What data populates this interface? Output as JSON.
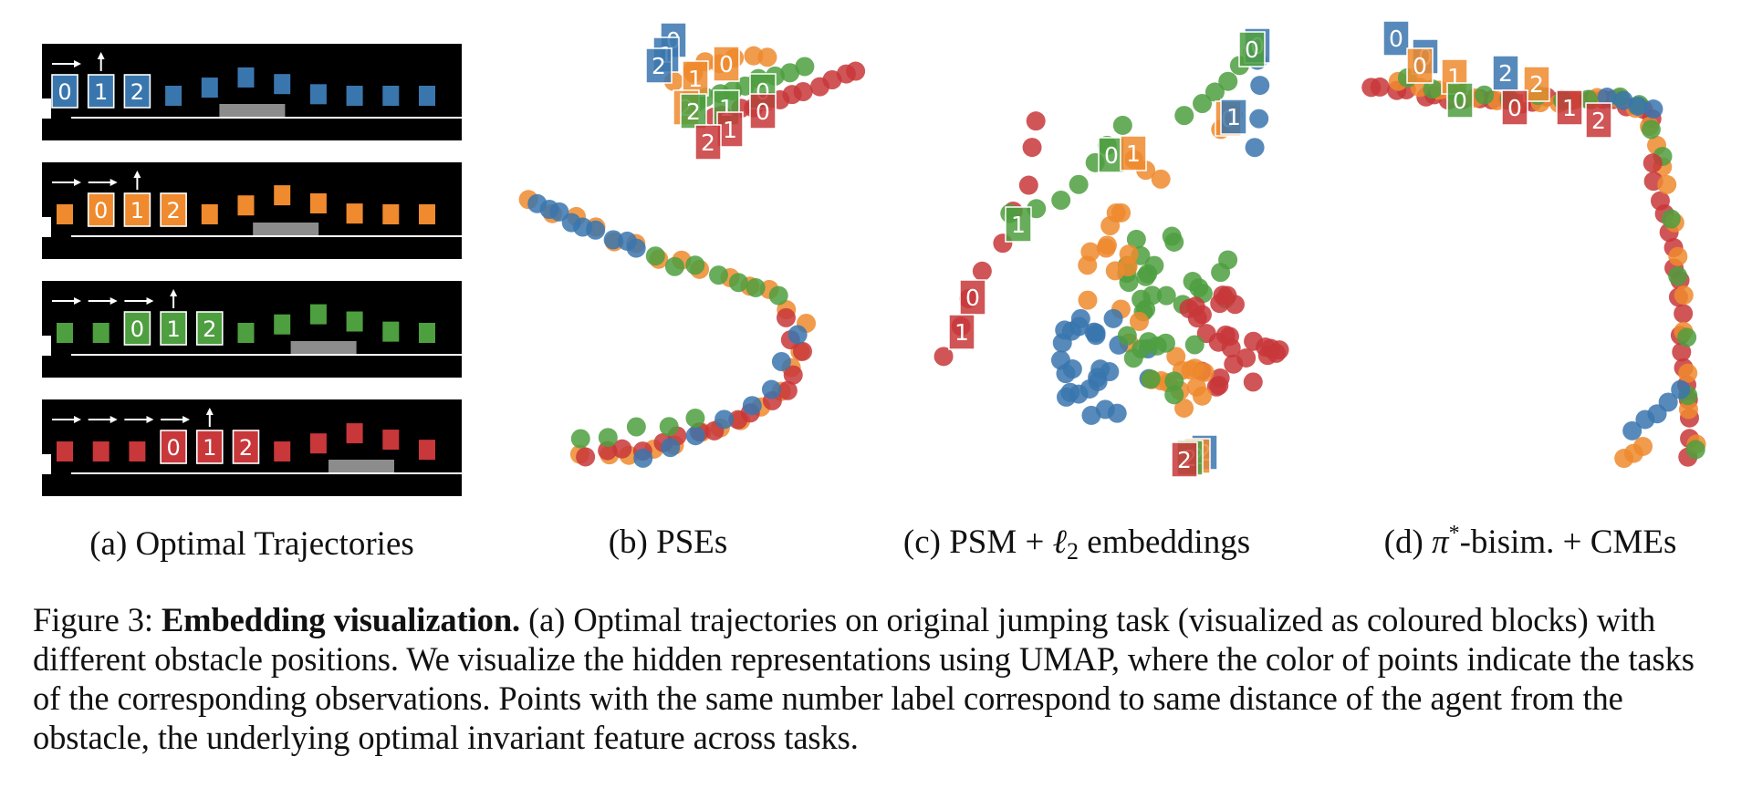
{
  "colors": {
    "blue": "#3a76ae",
    "orange": "#ef8a2e",
    "green": "#4e9f3f",
    "red": "#c8373a",
    "obstacle": "#8c8c8c",
    "background": "#000000"
  },
  "panels": {
    "a": "(a) Optimal Trajectories",
    "b": "(b) PSEs",
    "c_pre": "(c) PSM + ",
    "c_ell": "ℓ",
    "c_sub": "2",
    "c_post": " embeddings",
    "d_pre": "(d) ",
    "d_pi": "π",
    "d_sup": "*",
    "d_post": "-bisim. + CMEs"
  },
  "trajectories": [
    {
      "color": "blue",
      "labels": [
        "0",
        "1",
        "2"
      ],
      "label_start": 0,
      "arrows": 2,
      "obstacle": 0.44
    },
    {
      "color": "orange",
      "labels": [
        "0",
        "1",
        "2"
      ],
      "label_start": 1,
      "arrows": 3,
      "obstacle": 0.52
    },
    {
      "color": "green",
      "labels": [
        "0",
        "1",
        "2"
      ],
      "label_start": 2,
      "arrows": 4,
      "obstacle": 0.61
    },
    {
      "color": "red",
      "labels": [
        "0",
        "1",
        "2"
      ],
      "label_start": 3,
      "arrows": 5,
      "obstacle": 0.7
    }
  ],
  "caption": {
    "prefix": "Figure 3: ",
    "bold": "Embedding visualization.",
    "text": " (a) Optimal trajectories on original jumping task (visualized as coloured blocks) with different obstacle positions. We visualize the hidden representations using UMAP, where the color of points indicate the tasks of the corresponding observations. Points with the same number label correspond to same distance of the agent from the obstacle, the underlying optimal invariant feature across tasks."
  },
  "point_labels": {
    "b": [
      {
        "t": "0",
        "c": "blue"
      },
      {
        "t": "1",
        "c": "blue"
      },
      {
        "t": "2",
        "c": "blue"
      },
      {
        "t": "1",
        "c": "orange"
      },
      {
        "t": "0",
        "c": "orange"
      },
      {
        "t": "2",
        "c": "orange"
      },
      {
        "t": "0",
        "c": "green"
      },
      {
        "t": "1",
        "c": "green"
      },
      {
        "t": "2",
        "c": "green"
      },
      {
        "t": "0",
        "c": "red"
      },
      {
        "t": "1",
        "c": "red"
      },
      {
        "t": "2",
        "c": "red"
      }
    ],
    "c": [
      {
        "t": "0",
        "c": "blue"
      },
      {
        "t": "0",
        "c": "green"
      },
      {
        "t": "0",
        "c": "orange"
      },
      {
        "t": "1",
        "c": "blue"
      },
      {
        "t": "0",
        "c": "green"
      },
      {
        "t": "1",
        "c": "orange"
      },
      {
        "t": "1",
        "c": "green"
      },
      {
        "t": "0",
        "c": "red"
      },
      {
        "t": "1",
        "c": "red"
      },
      {
        "t": "2",
        "c": "blue"
      },
      {
        "t": "2",
        "c": "orange"
      },
      {
        "t": "2",
        "c": "green"
      },
      {
        "t": "2",
        "c": "red"
      }
    ],
    "d": [
      {
        "t": "0",
        "c": "blue"
      },
      {
        "t": "0",
        "c": "blue"
      },
      {
        "t": "0",
        "c": "orange"
      },
      {
        "t": "1",
        "c": "orange"
      },
      {
        "t": "2",
        "c": "blue"
      },
      {
        "t": "2",
        "c": "orange"
      },
      {
        "t": "0",
        "c": "green"
      },
      {
        "t": "0",
        "c": "red"
      },
      {
        "t": "1",
        "c": "red"
      },
      {
        "t": "2",
        "c": "red"
      }
    ]
  }
}
